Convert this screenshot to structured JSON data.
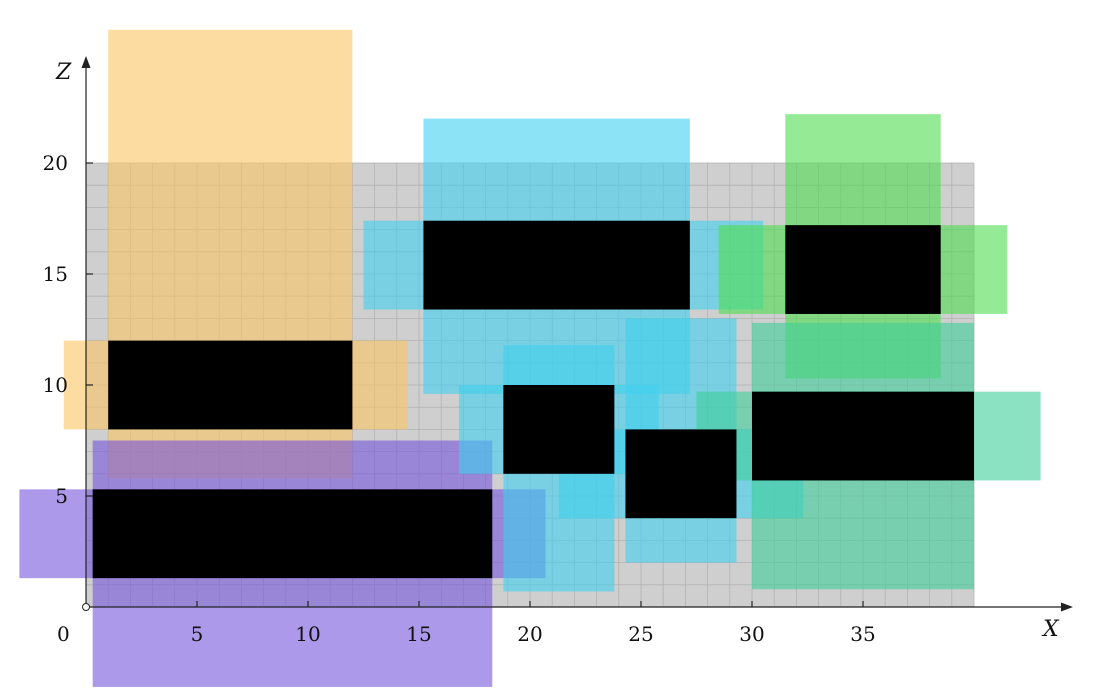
{
  "chart_data": {
    "type": "diagram",
    "xlabel": "X",
    "ylabel": "Z",
    "origin_label": "0",
    "x_ticks": [
      5,
      10,
      15,
      20,
      25,
      30,
      35
    ],
    "y_ticks": [
      5,
      10,
      15,
      20
    ],
    "grid": true,
    "grid_area": {
      "x": [
        0,
        40
      ],
      "z": [
        0,
        20
      ]
    },
    "grid_step": 1,
    "colors": {
      "grid_fill": "#cfcfcf",
      "grid_line": "#b2b2b2",
      "block": "#000000",
      "orange": "#fcc463",
      "purple": "#7555db",
      "cyan": "#3fd0ef",
      "green": "#4fdd4f",
      "teal": "#3ecf9a"
    },
    "zones": [
      {
        "color": "orange",
        "x": [
          1,
          12
        ],
        "z": [
          5.8,
          26
        ]
      },
      {
        "color": "orange",
        "x": [
          -1,
          14.5
        ],
        "z": [
          8,
          12
        ]
      },
      {
        "color": "purple",
        "x": [
          0.3,
          18.3
        ],
        "z": [
          -3.6,
          7.5
        ]
      },
      {
        "color": "purple",
        "x": [
          -3,
          20.7
        ],
        "z": [
          1.3,
          5.3
        ]
      },
      {
        "color": "cyan",
        "x": [
          15.2,
          27.2
        ],
        "z": [
          9.6,
          22
        ]
      },
      {
        "color": "cyan",
        "x": [
          12.5,
          30.5
        ],
        "z": [
          13.4,
          17.4
        ]
      },
      {
        "color": "cyan",
        "x": [
          18.8,
          23.8
        ],
        "z": [
          0.7,
          11.8
        ]
      },
      {
        "color": "cyan",
        "x": [
          16.8,
          25.8
        ],
        "z": [
          6,
          10
        ]
      },
      {
        "color": "cyan",
        "x": [
          24.3,
          29.3
        ],
        "z": [
          2,
          13
        ]
      },
      {
        "color": "cyan",
        "x": [
          21.3,
          32.3
        ],
        "z": [
          4,
          8
        ]
      },
      {
        "color": "green",
        "x": [
          31.5,
          38.5
        ],
        "z": [
          10.3,
          22.2
        ]
      },
      {
        "color": "green",
        "x": [
          28.5,
          41.5
        ],
        "z": [
          13.2,
          17.2
        ]
      },
      {
        "color": "teal",
        "x": [
          30,
          40
        ],
        "z": [
          0.8,
          12.8
        ]
      },
      {
        "color": "teal",
        "x": [
          27.5,
          43
        ],
        "z": [
          5.7,
          9.7
        ]
      }
    ],
    "blocks": [
      {
        "x": [
          1,
          12
        ],
        "z": [
          8,
          12
        ]
      },
      {
        "x": [
          0.3,
          18.3
        ],
        "z": [
          1.3,
          5.3
        ]
      },
      {
        "x": [
          15.2,
          27.2
        ],
        "z": [
          13.4,
          17.4
        ]
      },
      {
        "x": [
          18.8,
          23.8
        ],
        "z": [
          6,
          10
        ]
      },
      {
        "x": [
          24.3,
          29.3
        ],
        "z": [
          4,
          8
        ]
      },
      {
        "x": [
          31.5,
          38.5
        ],
        "z": [
          13.2,
          17.2
        ]
      },
      {
        "x": [
          30,
          40
        ],
        "z": [
          5.7,
          9.7
        ]
      }
    ]
  }
}
